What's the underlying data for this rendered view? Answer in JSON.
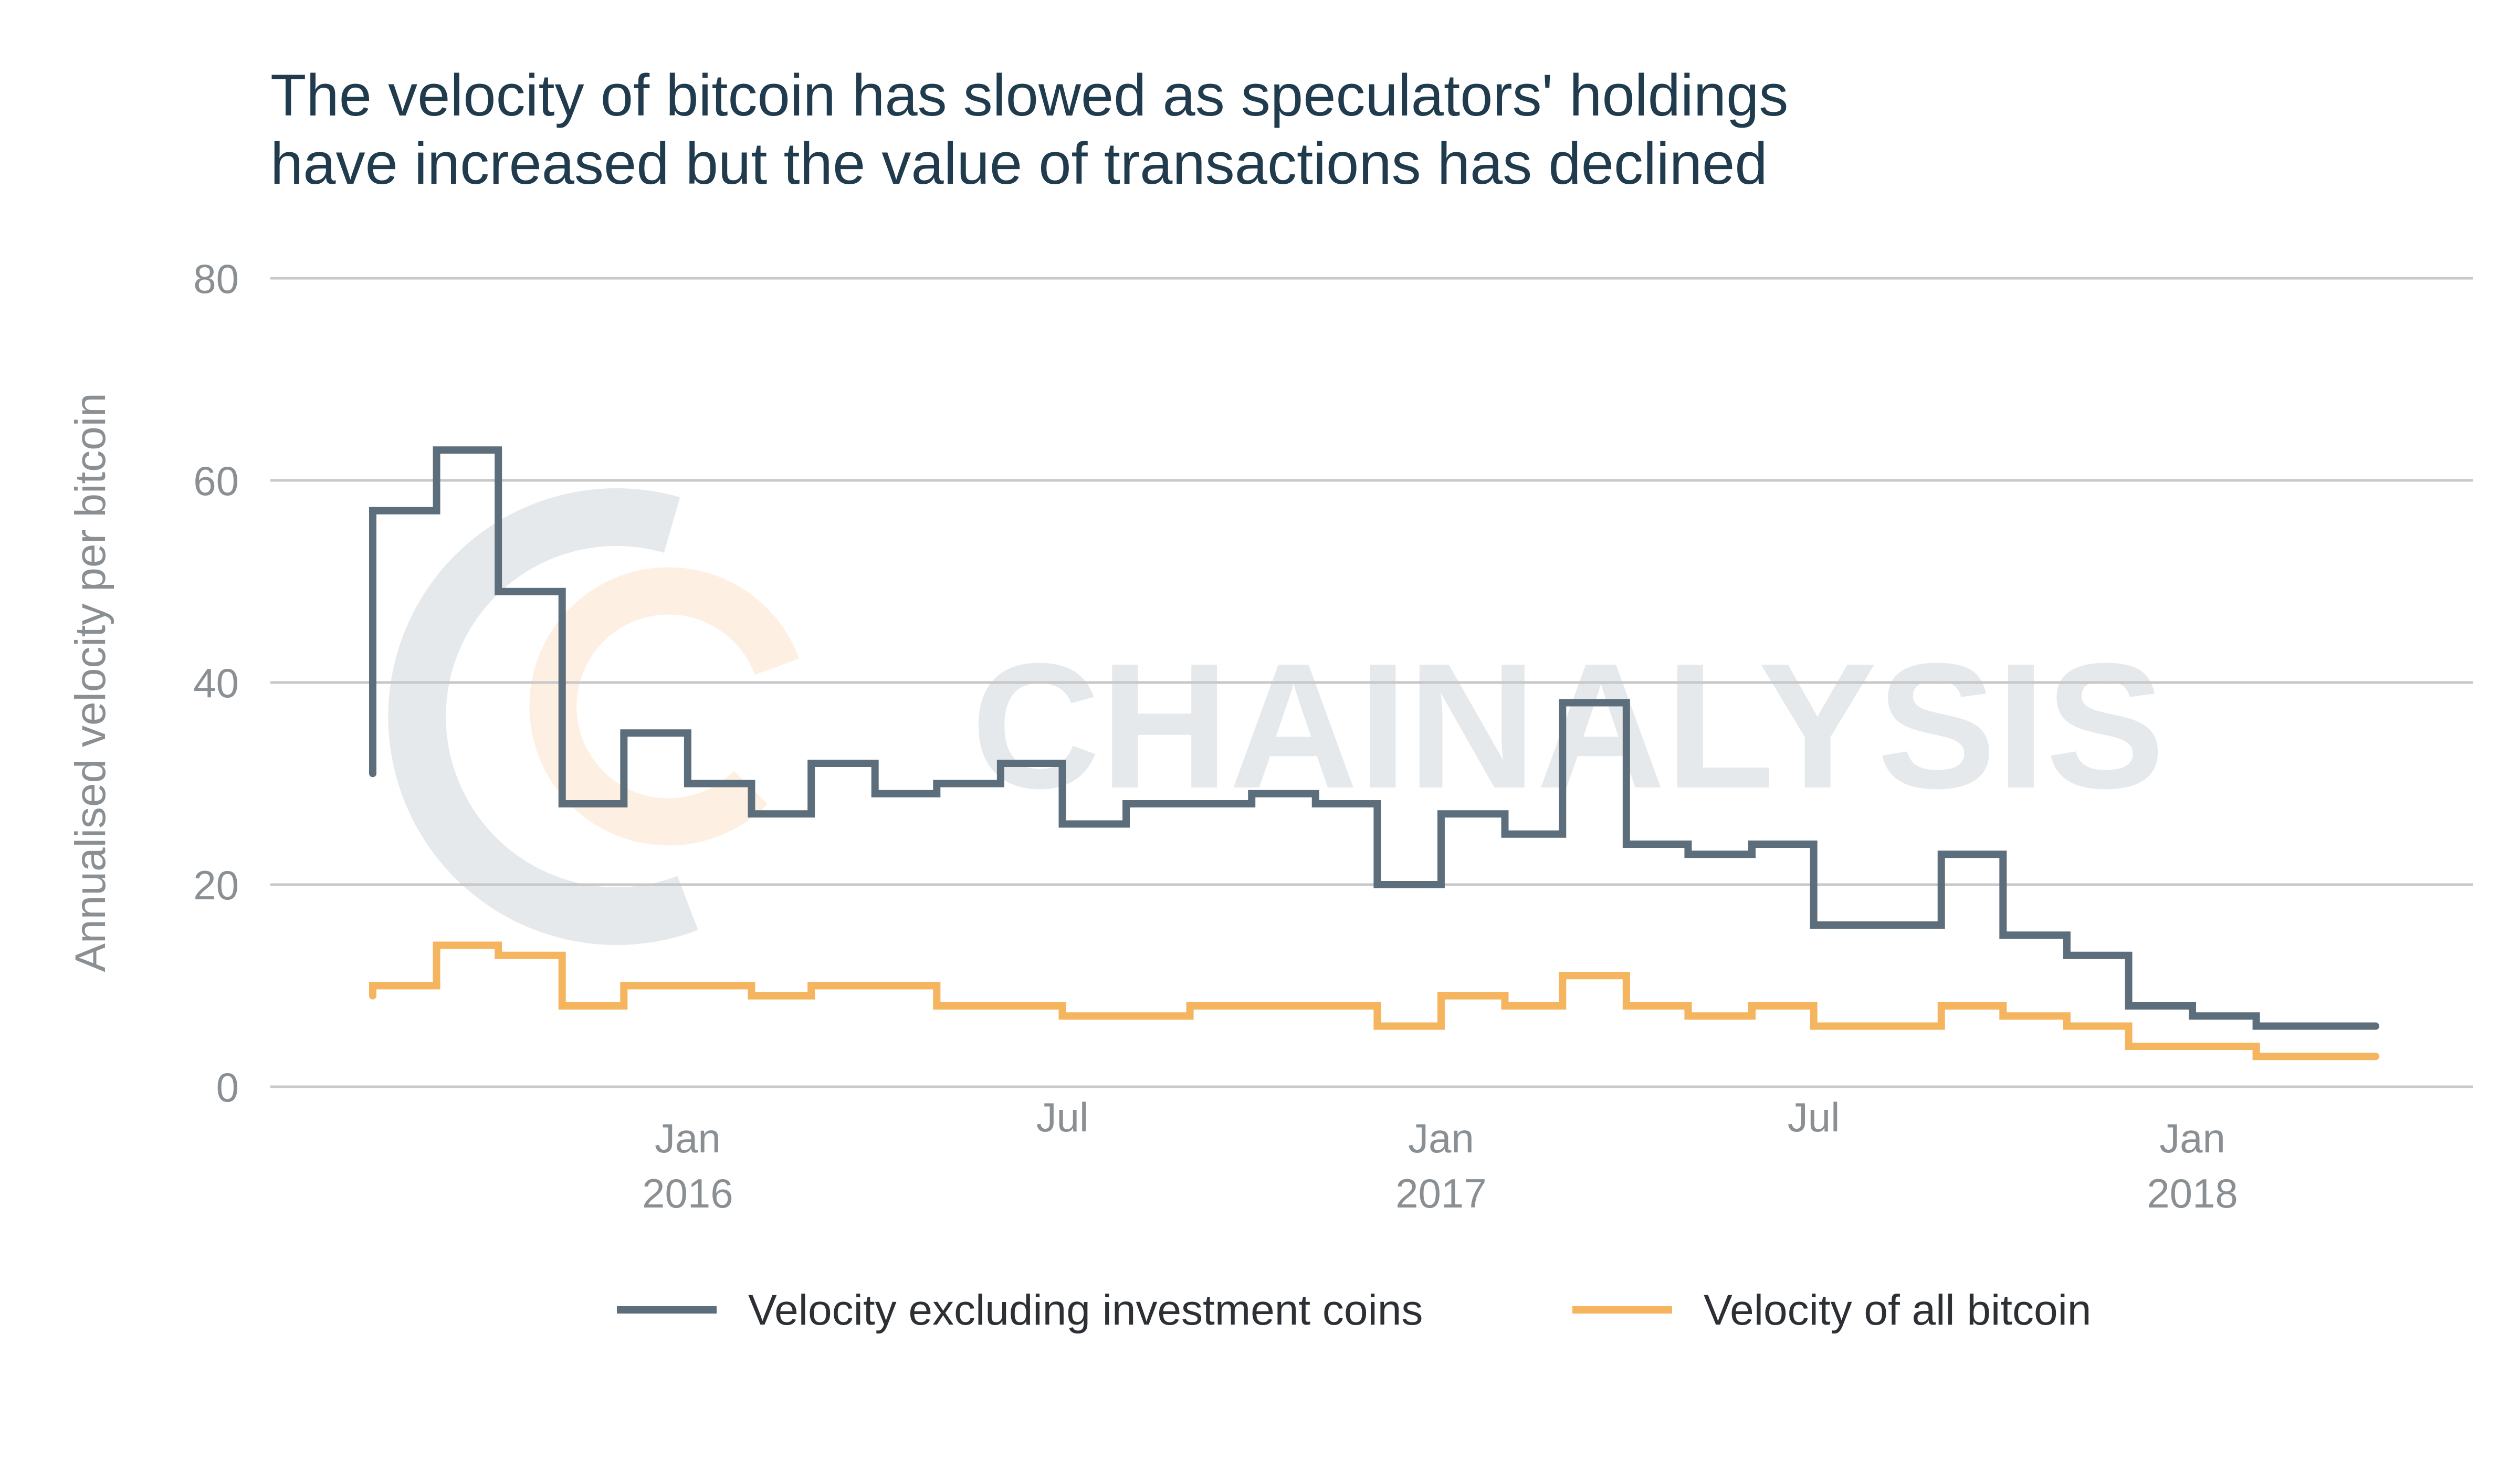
{
  "title_line1": "The velocity of bitcoin has slowed as speculators' holdings",
  "title_line2": "have increased but the value of transactions has declined",
  "watermark": "CHAINALYSIS",
  "colors": {
    "series_excl": "#5c6e7b",
    "series_all": "#f5b45e",
    "grid": "#c8c8c8",
    "title": "#1f3b4d",
    "tick": "#8a8f94",
    "watermark_grey": "#e5e9eb",
    "watermark_orange": "#fdf0e2"
  },
  "chart_data": {
    "type": "line",
    "title": "The velocity of bitcoin has slowed as speculators' holdings have increased but the value of transactions has declined",
    "ylabel": "Annualised velocity per bitcoin",
    "xlabel": "",
    "ylim": [
      0,
      80
    ],
    "yticks": [
      "0",
      "20",
      "40",
      "60",
      "80"
    ],
    "grid": true,
    "legend_position": "bottom",
    "xticks": [
      {
        "date": "2016-01-01",
        "line1": "Jan",
        "line2": "2016"
      },
      {
        "date": "2016-07-01",
        "line1": "Jul",
        "line2": ""
      },
      {
        "date": "2017-01-01",
        "line1": "Jan",
        "line2": "2017"
      },
      {
        "date": "2017-07-01",
        "line1": "Jul",
        "line2": ""
      },
      {
        "date": "2018-01-01",
        "line1": "Jan",
        "line2": "2018"
      }
    ],
    "step_dates": [
      "2015-08-01",
      "2015-09-01",
      "2015-10-01",
      "2015-11-01",
      "2015-12-01",
      "2016-01-01",
      "2016-02-01",
      "2016-03-01",
      "2016-04-01",
      "2016-05-01",
      "2016-06-01",
      "2016-07-01",
      "2016-08-01",
      "2016-09-01",
      "2016-10-01",
      "2016-11-01",
      "2016-12-01",
      "2017-01-01",
      "2017-02-01",
      "2017-03-01",
      "2017-04-01",
      "2017-05-01",
      "2017-06-01",
      "2017-07-01",
      "2017-08-01",
      "2017-09-01",
      "2017-10-01",
      "2017-11-01",
      "2017-12-01",
      "2018-01-01",
      "2018-02-01",
      "2018-03-01"
    ],
    "end_date": "2018-03-31",
    "series": [
      {
        "name": "Velocity excluding investment coins",
        "start_value": 31,
        "values": [
          57,
          63,
          49,
          28,
          35,
          30,
          27,
          32,
          29,
          30,
          32,
          26,
          28,
          28,
          29,
          28,
          20,
          27,
          25,
          38,
          24,
          23,
          24,
          16,
          16,
          23,
          15,
          13,
          8,
          7,
          6,
          6
        ]
      },
      {
        "name": "Velocity of all bitcoin",
        "start_value": 9,
        "values": [
          10,
          14,
          13,
          8,
          10,
          10,
          9,
          10,
          10,
          8,
          8,
          7,
          7,
          8,
          8,
          8,
          6,
          9,
          8,
          11,
          8,
          7,
          8,
          6,
          6,
          8,
          7,
          6,
          4,
          4,
          3,
          3
        ]
      }
    ]
  }
}
